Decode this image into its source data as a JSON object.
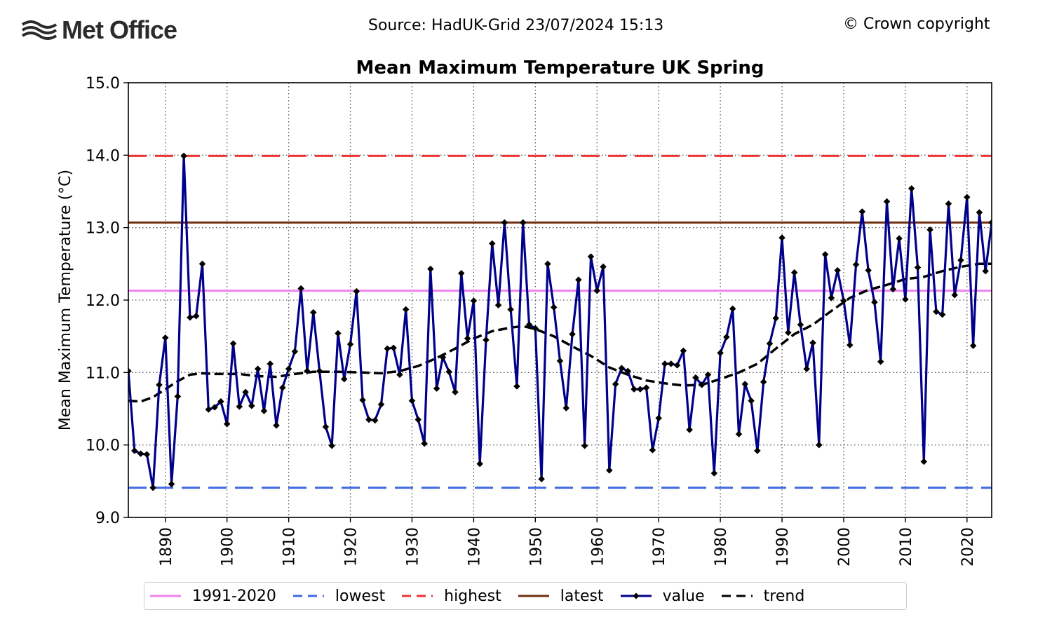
{
  "header": {
    "logo_text": "Met Office",
    "source": "Source: HadUK-Grid 23/07/2024 15:13",
    "copyright": "© Crown copyright"
  },
  "chart_data": {
    "type": "line",
    "title": "Mean Maximum Temperature UK Spring",
    "xlabel": "",
    "ylabel": "Mean Maximum Temperature (°C)",
    "xlim": [
      1884,
      2024
    ],
    "ylim": [
      9.0,
      15.0
    ],
    "xticks": [
      1890,
      1900,
      1910,
      1920,
      1930,
      1940,
      1950,
      1960,
      1970,
      1980,
      1990,
      2000,
      2010,
      2020
    ],
    "yticks": [
      "9.0",
      "10.0",
      "11.0",
      "12.0",
      "13.0",
      "14.0",
      "15.0"
    ],
    "grid": true,
    "legend_position": "bottom",
    "reference_lines": [
      {
        "name": "1991-2020",
        "value": 12.13,
        "color": "#ee82ee",
        "style": "solid"
      },
      {
        "name": "lowest",
        "value": 9.41,
        "color": "#4169e1",
        "style": "dashed"
      },
      {
        "name": "highest",
        "value": 13.99,
        "color": "#ee3333",
        "style": "dashed"
      },
      {
        "name": "latest",
        "value": 13.07,
        "color": "#703010",
        "style": "solid"
      }
    ],
    "series": [
      {
        "name": "value",
        "color": "#00008b",
        "x": [
          1884,
          1885,
          1886,
          1887,
          1888,
          1889,
          1890,
          1891,
          1892,
          1893,
          1894,
          1895,
          1896,
          1897,
          1898,
          1899,
          1900,
          1901,
          1902,
          1903,
          1904,
          1905,
          1906,
          1907,
          1908,
          1909,
          1910,
          1911,
          1912,
          1913,
          1914,
          1915,
          1916,
          1917,
          1918,
          1919,
          1920,
          1921,
          1922,
          1923,
          1924,
          1925,
          1926,
          1927,
          1928,
          1929,
          1930,
          1931,
          1932,
          1933,
          1934,
          1935,
          1936,
          1937,
          1938,
          1939,
          1940,
          1941,
          1942,
          1943,
          1944,
          1945,
          1946,
          1947,
          1948,
          1949,
          1950,
          1951,
          1952,
          1953,
          1954,
          1955,
          1956,
          1957,
          1958,
          1959,
          1960,
          1961,
          1962,
          1963,
          1964,
          1965,
          1966,
          1967,
          1968,
          1969,
          1970,
          1971,
          1972,
          1973,
          1974,
          1975,
          1976,
          1977,
          1978,
          1979,
          1980,
          1981,
          1982,
          1983,
          1984,
          1985,
          1986,
          1987,
          1988,
          1989,
          1990,
          1991,
          1992,
          1993,
          1994,
          1995,
          1996,
          1997,
          1998,
          1999,
          2000,
          2001,
          2002,
          2003,
          2004,
          2005,
          2006,
          2007,
          2008,
          2009,
          2010,
          2011,
          2012,
          2013,
          2014,
          2015,
          2016,
          2017,
          2018,
          2019,
          2020,
          2021,
          2022,
          2023,
          2024
        ],
        "values": [
          11.02,
          9.92,
          9.88,
          9.87,
          9.41,
          10.83,
          11.48,
          9.46,
          10.67,
          13.99,
          11.76,
          11.78,
          12.5,
          10.49,
          10.52,
          10.6,
          10.29,
          11.4,
          10.53,
          10.73,
          10.54,
          11.05,
          10.47,
          11.12,
          10.27,
          10.79,
          11.05,
          11.29,
          12.16,
          11.02,
          11.83,
          11.02,
          10.25,
          9.99,
          11.54,
          10.91,
          11.39,
          12.12,
          10.62,
          10.35,
          10.34,
          10.56,
          11.33,
          11.34,
          10.97,
          11.87,
          10.61,
          10.35,
          10.02,
          12.43,
          10.78,
          11.21,
          11.01,
          10.73,
          12.37,
          11.47,
          11.99,
          9.74,
          11.45,
          12.78,
          11.93,
          13.07,
          11.87,
          10.81,
          13.07,
          11.66,
          11.61,
          9.53,
          12.5,
          11.9,
          11.16,
          10.51,
          11.53,
          12.28,
          9.99,
          12.6,
          12.13,
          12.46,
          9.65,
          10.84,
          11.06,
          11.02,
          10.77,
          10.77,
          10.79,
          9.93,
          10.37,
          11.12,
          11.12,
          11.1,
          11.3,
          10.21,
          10.93,
          10.83,
          10.97,
          9.61,
          11.27,
          11.49,
          11.88,
          10.15,
          10.84,
          10.61,
          9.92,
          10.87,
          11.4,
          11.75,
          12.86,
          11.55,
          12.38,
          11.66,
          11.05,
          11.41,
          10.0,
          12.63,
          12.03,
          12.41,
          11.99,
          11.38,
          12.49,
          13.22,
          12.41,
          11.97,
          11.15,
          13.36,
          12.15,
          12.85,
          12.01,
          13.54,
          12.45,
          9.77,
          12.97,
          11.84,
          11.8,
          13.33,
          12.07,
          12.55,
          13.42,
          11.37,
          13.21,
          12.4,
          13.07
        ]
      },
      {
        "name": "trend",
        "color": "#000000",
        "x": [
          1884,
          1886,
          1888,
          1890,
          1892,
          1894,
          1896,
          1898,
          1900,
          1902,
          1905,
          1908,
          1911,
          1914,
          1918,
          1922,
          1925,
          1928,
          1931,
          1934,
          1937,
          1940,
          1943,
          1946,
          1948,
          1950,
          1953,
          1956,
          1959,
          1962,
          1965,
          1968,
          1971,
          1974,
          1977,
          1980,
          1983,
          1986,
          1989,
          1992,
          1995,
          1998,
          2001,
          2004,
          2007,
          2010,
          2013,
          2016,
          2019,
          2022,
          2024
        ],
        "values": [
          10.61,
          10.6,
          10.66,
          10.77,
          10.88,
          10.97,
          10.99,
          10.98,
          10.98,
          10.98,
          10.95,
          10.94,
          10.98,
          11.01,
          11.01,
          11.0,
          10.99,
          11.02,
          11.09,
          11.2,
          11.33,
          11.47,
          11.57,
          11.62,
          11.64,
          11.6,
          11.5,
          11.36,
          11.23,
          11.07,
          10.97,
          10.89,
          10.85,
          10.82,
          10.83,
          10.91,
          11.0,
          11.12,
          11.33,
          11.53,
          11.66,
          11.85,
          12.03,
          12.14,
          12.21,
          12.29,
          12.32,
          12.4,
          12.46,
          12.5,
          12.5
        ]
      }
    ]
  },
  "legend": [
    {
      "label": "1991-2020",
      "color": "#ee82ee",
      "style": "solid"
    },
    {
      "label": "lowest",
      "color": "#4169e1",
      "style": "dashed"
    },
    {
      "label": "highest",
      "color": "#ee3333",
      "style": "dashed"
    },
    {
      "label": "latest",
      "color": "#703010",
      "style": "solid"
    },
    {
      "label": "value",
      "color": "#00008b",
      "style": "marker"
    },
    {
      "label": "trend",
      "color": "#000000",
      "style": "dashed"
    }
  ]
}
